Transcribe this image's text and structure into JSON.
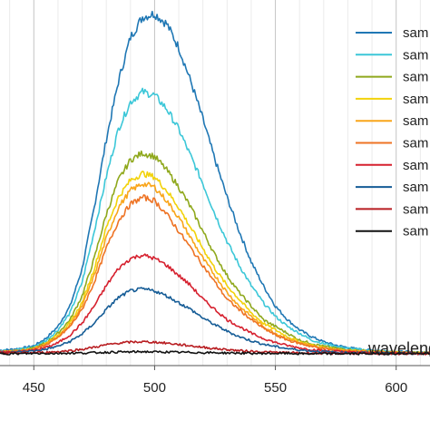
{
  "chart_data": {
    "type": "line",
    "xlabel": "wavelength",
    "ylabel": "",
    "xlim": [
      436,
      614
    ],
    "ylim": [
      -0.035,
      1.04
    ],
    "x_ticks": [
      450,
      500,
      550,
      600
    ],
    "grid": "vertical major and minor",
    "legend_position": "top-right",
    "x": [
      436,
      440,
      445,
      450,
      455,
      460,
      465,
      470,
      475,
      480,
      485,
      490,
      495,
      500,
      505,
      510,
      515,
      520,
      525,
      530,
      535,
      540,
      545,
      550,
      555,
      560,
      565,
      570,
      575,
      580,
      585,
      590,
      595,
      600,
      605,
      610,
      614
    ],
    "series": [
      {
        "name": "sam",
        "color": "#1f77b4",
        "values": [
          0.01,
          0.012,
          0.016,
          0.023,
          0.045,
          0.08,
          0.14,
          0.25,
          0.43,
          0.63,
          0.8,
          0.93,
          0.99,
          1.0,
          0.97,
          0.9,
          0.8,
          0.69,
          0.57,
          0.46,
          0.36,
          0.27,
          0.2,
          0.14,
          0.1,
          0.07,
          0.05,
          0.035,
          0.025,
          0.018,
          0.013,
          0.01,
          0.008,
          0.006,
          0.005,
          0.004,
          0.004
        ]
      },
      {
        "name": "sam",
        "color": "#3cc7d8",
        "values": [
          0.008,
          0.01,
          0.014,
          0.02,
          0.038,
          0.07,
          0.12,
          0.21,
          0.36,
          0.52,
          0.66,
          0.74,
          0.77,
          0.76,
          0.72,
          0.66,
          0.58,
          0.5,
          0.41,
          0.33,
          0.26,
          0.2,
          0.15,
          0.11,
          0.08,
          0.06,
          0.04,
          0.03,
          0.022,
          0.016,
          0.012,
          0.009,
          0.007,
          0.005,
          0.004,
          0.003,
          0.003
        ]
      },
      {
        "name": "sam",
        "color": "#8fa81c",
        "values": [
          0.006,
          0.008,
          0.011,
          0.016,
          0.032,
          0.06,
          0.1,
          0.17,
          0.28,
          0.41,
          0.51,
          0.57,
          0.59,
          0.58,
          0.54,
          0.49,
          0.43,
          0.36,
          0.29,
          0.23,
          0.18,
          0.14,
          0.1,
          0.08,
          0.06,
          0.04,
          0.03,
          0.022,
          0.016,
          0.012,
          0.009,
          0.007,
          0.005,
          0.004,
          0.003,
          0.003,
          0.002
        ]
      },
      {
        "name": "sam",
        "color": "#f2d20a",
        "values": [
          0.006,
          0.007,
          0.01,
          0.015,
          0.03,
          0.055,
          0.09,
          0.15,
          0.25,
          0.37,
          0.46,
          0.51,
          0.53,
          0.52,
          0.48,
          0.43,
          0.37,
          0.31,
          0.25,
          0.2,
          0.16,
          0.12,
          0.09,
          0.07,
          0.05,
          0.035,
          0.025,
          0.018,
          0.013,
          0.01,
          0.008,
          0.006,
          0.005,
          0.004,
          0.003,
          0.002,
          0.002
        ]
      },
      {
        "name": "sam",
        "color": "#f9a51a",
        "values": [
          0.005,
          0.006,
          0.009,
          0.014,
          0.028,
          0.05,
          0.085,
          0.14,
          0.23,
          0.34,
          0.43,
          0.48,
          0.5,
          0.49,
          0.45,
          0.4,
          0.34,
          0.28,
          0.23,
          0.18,
          0.14,
          0.11,
          0.08,
          0.06,
          0.045,
          0.032,
          0.023,
          0.017,
          0.012,
          0.009,
          0.007,
          0.005,
          0.004,
          0.003,
          0.003,
          0.002,
          0.002
        ]
      },
      {
        "name": "sam",
        "color": "#ee7324",
        "values": [
          0.005,
          0.006,
          0.009,
          0.013,
          0.026,
          0.047,
          0.08,
          0.13,
          0.21,
          0.31,
          0.39,
          0.44,
          0.46,
          0.45,
          0.41,
          0.36,
          0.31,
          0.26,
          0.21,
          0.16,
          0.13,
          0.1,
          0.075,
          0.055,
          0.04,
          0.03,
          0.021,
          0.015,
          0.011,
          0.008,
          0.006,
          0.005,
          0.004,
          0.003,
          0.002,
          0.002,
          0.002
        ]
      },
      {
        "name": "sam",
        "color": "#d6202e",
        "values": [
          0.004,
          0.005,
          0.007,
          0.01,
          0.018,
          0.032,
          0.055,
          0.09,
          0.14,
          0.2,
          0.25,
          0.28,
          0.29,
          0.28,
          0.26,
          0.23,
          0.2,
          0.16,
          0.13,
          0.1,
          0.08,
          0.06,
          0.045,
          0.033,
          0.024,
          0.017,
          0.012,
          0.009,
          0.007,
          0.005,
          0.004,
          0.003,
          0.002,
          0.002,
          0.002,
          0.001,
          0.001
        ]
      },
      {
        "name": "sam",
        "color": "#155c96",
        "values": [
          0.003,
          0.004,
          0.006,
          0.008,
          0.013,
          0.022,
          0.036,
          0.058,
          0.09,
          0.13,
          0.165,
          0.185,
          0.19,
          0.185,
          0.17,
          0.15,
          0.13,
          0.105,
          0.085,
          0.066,
          0.05,
          0.038,
          0.028,
          0.021,
          0.015,
          0.011,
          0.008,
          0.006,
          0.004,
          0.003,
          0.003,
          0.002,
          0.002,
          0.001,
          0.001,
          0.001,
          0.001
        ]
      },
      {
        "name": "sam",
        "color": "#b81c20",
        "values": [
          0.001,
          0.002,
          0.002,
          0.003,
          0.004,
          0.006,
          0.009,
          0.013,
          0.019,
          0.026,
          0.031,
          0.034,
          0.035,
          0.034,
          0.031,
          0.027,
          0.023,
          0.019,
          0.015,
          0.012,
          0.009,
          0.007,
          0.005,
          0.004,
          0.003,
          0.002,
          0.002,
          0.001,
          0.001,
          0.001,
          0.001,
          0.0,
          0.0,
          0.0,
          0.0,
          0.0,
          0.0
        ]
      },
      {
        "name": "sam",
        "color": "#111111",
        "values": [
          0.0,
          0.0,
          0.0,
          0.001,
          0.001,
          0.001,
          0.002,
          0.002,
          0.003,
          0.004,
          0.005,
          0.005,
          0.006,
          0.005,
          0.005,
          0.004,
          0.004,
          0.003,
          0.003,
          0.002,
          0.002,
          0.001,
          0.001,
          0.001,
          0.001,
          0.0,
          0.0,
          0.0,
          0.0,
          0.0,
          0.0,
          0.0,
          0.0,
          0.0,
          0.0,
          0.0,
          0.0
        ]
      }
    ]
  }
}
